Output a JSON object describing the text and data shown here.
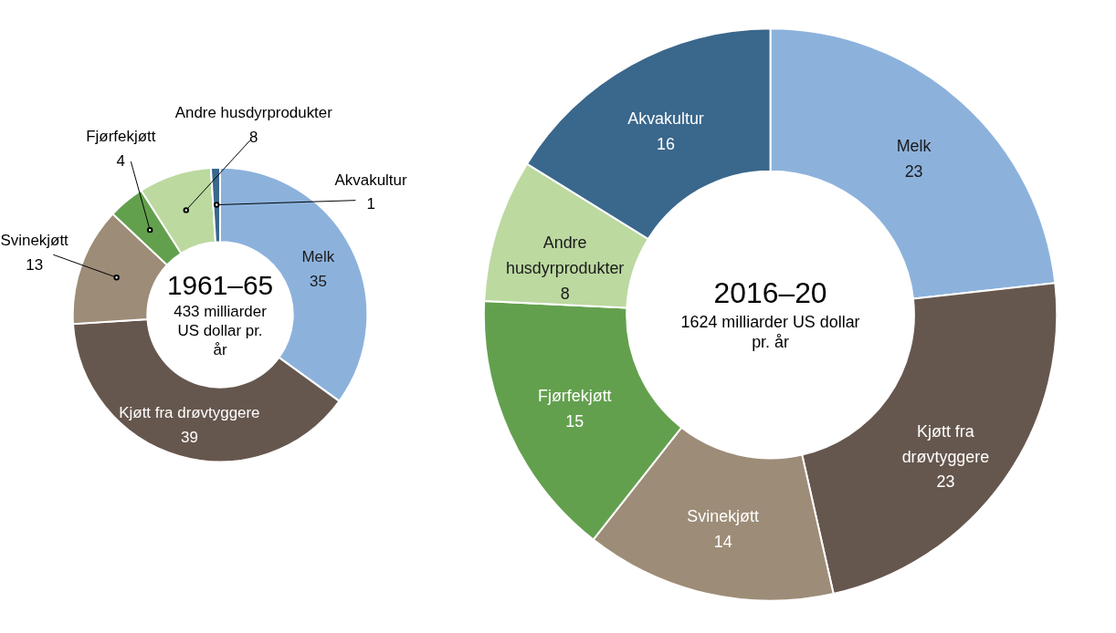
{
  "chart_data": [
    {
      "type": "donut",
      "title": "1961–65",
      "subtitle": "433 milliarder US dollar pr. år",
      "categories": [
        "Melk",
        "Kjøtt fra drøvtyggere",
        "Svinekjøtt",
        "Fjørfekjøtt",
        "Andre husdyrprodukter",
        "Akvakultur"
      ],
      "values": [
        35,
        39,
        13,
        4,
        8,
        1
      ],
      "colors": [
        "#8cb2dc",
        "#66574e",
        "#9d8c77",
        "#63a04e",
        "#bcd9a0",
        "#3a678c"
      ],
      "data_labels": true
    },
    {
      "type": "donut",
      "title": "2016–20",
      "subtitle": "1624 milliarder US dollar pr. år",
      "categories": [
        "Melk",
        "Kjøtt fra drøvtyggere",
        "Svinekjøtt",
        "Fjørfekjøtt",
        "Andre husdyrprodukter",
        "Akvakultur"
      ],
      "values": [
        23,
        23,
        14,
        15,
        8,
        16
      ],
      "colors": [
        "#8cb2dc",
        "#66574e",
        "#9d8c77",
        "#63a04e",
        "#bcd9a0",
        "#3a678c"
      ],
      "data_labels": true
    }
  ]
}
